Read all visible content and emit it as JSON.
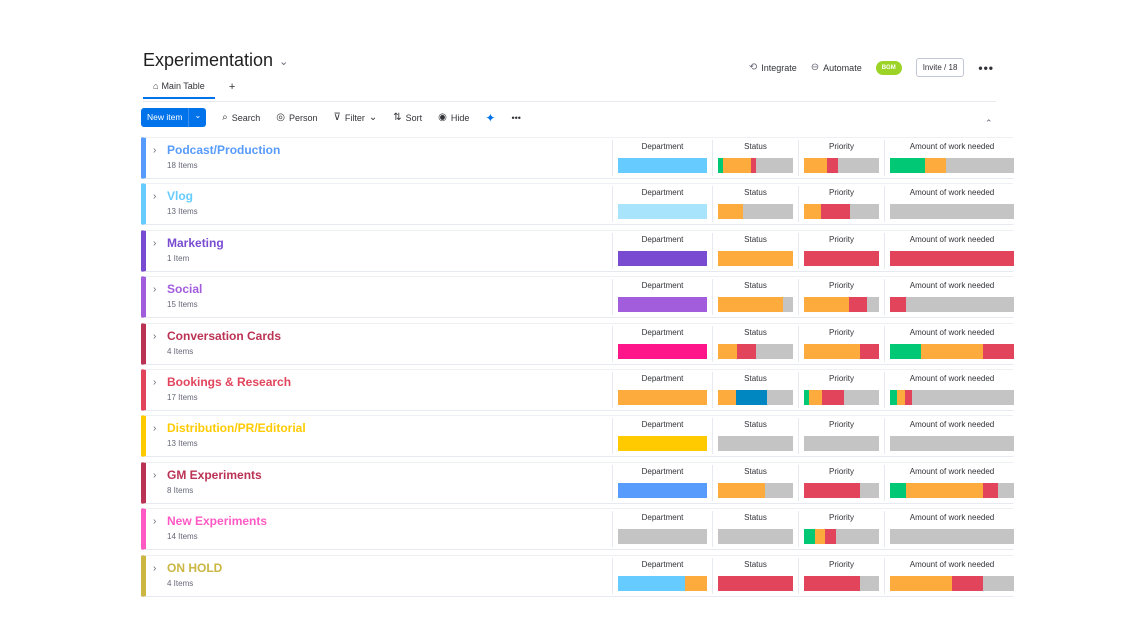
{
  "board": {
    "title": "Experimentation"
  },
  "tabs": {
    "main_table": "Main Table",
    "add": "+"
  },
  "header": {
    "integrate": "Integrate",
    "automate": "Automate",
    "avatars": "BGM",
    "invite": "Invite / 18",
    "more": "•••"
  },
  "toolbar": {
    "new_item": "New item",
    "search": "Search",
    "person": "Person",
    "filter": "Filter",
    "sort": "Sort",
    "hide": "Hide",
    "more": "•••"
  },
  "columns": {
    "department": "Department",
    "status": "Status",
    "priority": "Priority",
    "work": "Amount of work needed"
  },
  "colors": {
    "accent": "#0073ea",
    "gray": "#c4c4c4",
    "orange": "#fdab3d",
    "red": "#e2445c",
    "green": "#00c875",
    "blue_status": "#0086c0"
  },
  "groups": [
    {
      "name": "Podcast/Production",
      "count": "18 Items",
      "color": "#579bfc",
      "dept": [
        [
          "#66ccff",
          1
        ]
      ],
      "status": [
        [
          "#00c875",
          0.06
        ],
        [
          "#fdab3d",
          0.38
        ],
        [
          "#e2445c",
          0.06
        ],
        [
          "#c4c4c4",
          0.5
        ]
      ],
      "priority": [
        [
          "#fdab3d",
          0.3
        ],
        [
          "#e2445c",
          0.15
        ],
        [
          "#c4c4c4",
          0.55
        ]
      ],
      "work": [
        [
          "#00c875",
          0.28
        ],
        [
          "#fdab3d",
          0.17
        ],
        [
          "#c4c4c4",
          0.55
        ]
      ]
    },
    {
      "name": "Vlog",
      "count": "13 Items",
      "color": "#66ccff",
      "dept": [
        [
          "#a8e4fb",
          1
        ]
      ],
      "status": [
        [
          "#fdab3d",
          0.33
        ],
        [
          "#c4c4c4",
          0.67
        ]
      ],
      "priority": [
        [
          "#fdab3d",
          0.23
        ],
        [
          "#e2445c",
          0.38
        ],
        [
          "#c4c4c4",
          0.39
        ]
      ],
      "work": [
        [
          "#c4c4c4",
          1
        ]
      ]
    },
    {
      "name": "Marketing",
      "count": "1 Item",
      "color": "#784bd1",
      "dept": [
        [
          "#784bd1",
          1
        ]
      ],
      "status": [
        [
          "#fdab3d",
          1
        ]
      ],
      "priority": [
        [
          "#e2445c",
          1
        ]
      ],
      "work": [
        [
          "#e2445c",
          1
        ]
      ]
    },
    {
      "name": "Social",
      "count": "15 Items",
      "color": "#a25ddc",
      "dept": [
        [
          "#a25ddc",
          1
        ]
      ],
      "status": [
        [
          "#fdab3d",
          0.86
        ],
        [
          "#c4c4c4",
          0.14
        ]
      ],
      "priority": [
        [
          "#fdab3d",
          0.6
        ],
        [
          "#e2445c",
          0.24
        ],
        [
          "#c4c4c4",
          0.16
        ]
      ],
      "work": [
        [
          "#e2445c",
          0.13
        ],
        [
          "#c4c4c4",
          0.87
        ]
      ]
    },
    {
      "name": "Conversation Cards",
      "count": "4 Items",
      "color": "#bb3354",
      "dept": [
        [
          "#ff158a",
          1
        ]
      ],
      "status": [
        [
          "#fdab3d",
          0.25
        ],
        [
          "#e2445c",
          0.25
        ],
        [
          "#c4c4c4",
          0.5
        ]
      ],
      "priority": [
        [
          "#fdab3d",
          0.75
        ],
        [
          "#e2445c",
          0.25
        ]
      ],
      "work": [
        [
          "#00c875",
          0.25
        ],
        [
          "#fdab3d",
          0.5
        ],
        [
          "#e2445c",
          0.25
        ]
      ]
    },
    {
      "name": "Bookings & Research",
      "count": "17 Items",
      "color": "#e2445c",
      "dept": [
        [
          "#fdab3d",
          1
        ]
      ],
      "status": [
        [
          "#fdab3d",
          0.24
        ],
        [
          "#0086c0",
          0.41
        ],
        [
          "#c4c4c4",
          0.35
        ]
      ],
      "priority": [
        [
          "#00c875",
          0.06
        ],
        [
          "#fdab3d",
          0.18
        ],
        [
          "#e2445c",
          0.29
        ],
        [
          "#c4c4c4",
          0.47
        ]
      ],
      "work": [
        [
          "#00c875",
          0.06
        ],
        [
          "#fdab3d",
          0.06
        ],
        [
          "#e2445c",
          0.06
        ],
        [
          "#c4c4c4",
          0.82
        ]
      ]
    },
    {
      "name": "Distribution/PR/Editorial",
      "count": "13 Items",
      "color": "#ffcb00",
      "dept": [
        [
          "#ffcb00",
          1
        ]
      ],
      "status": [
        [
          "#c4c4c4",
          1
        ]
      ],
      "priority": [
        [
          "#c4c4c4",
          1
        ]
      ],
      "work": [
        [
          "#c4c4c4",
          1
        ]
      ]
    },
    {
      "name": "GM Experiments",
      "count": "8 Items",
      "color": "#bb3354",
      "dept": [
        [
          "#579bfc",
          1
        ]
      ],
      "status": [
        [
          "#fdab3d",
          0.62
        ],
        [
          "#c4c4c4",
          0.38
        ]
      ],
      "priority": [
        [
          "#e2445c",
          0.75
        ],
        [
          "#c4c4c4",
          0.25
        ]
      ],
      "work": [
        [
          "#00c875",
          0.13
        ],
        [
          "#fdab3d",
          0.62
        ],
        [
          "#e2445c",
          0.12
        ],
        [
          "#c4c4c4",
          0.13
        ]
      ]
    },
    {
      "name": "New Experiments",
      "count": "14 Items",
      "color": "#ff5ac4",
      "dept": [
        [
          "#c4c4c4",
          1
        ]
      ],
      "status": [
        [
          "#c4c4c4",
          1
        ]
      ],
      "priority": [
        [
          "#00c875",
          0.14
        ],
        [
          "#fdab3d",
          0.14
        ],
        [
          "#e2445c",
          0.14
        ],
        [
          "#c4c4c4",
          0.58
        ]
      ],
      "work": [
        [
          "#c4c4c4",
          1
        ]
      ]
    },
    {
      "name": "ON HOLD",
      "count": "4 Items",
      "color": "#cab641",
      "dept": [
        [
          "#66ccff",
          0.75
        ],
        [
          "#fdab3d",
          0.25
        ]
      ],
      "status": [
        [
          "#e2445c",
          1
        ]
      ],
      "priority": [
        [
          "#e2445c",
          0.75
        ],
        [
          "#c4c4c4",
          0.25
        ]
      ],
      "work": [
        [
          "#fdab3d",
          0.5
        ],
        [
          "#e2445c",
          0.25
        ],
        [
          "#c4c4c4",
          0.25
        ]
      ]
    }
  ]
}
